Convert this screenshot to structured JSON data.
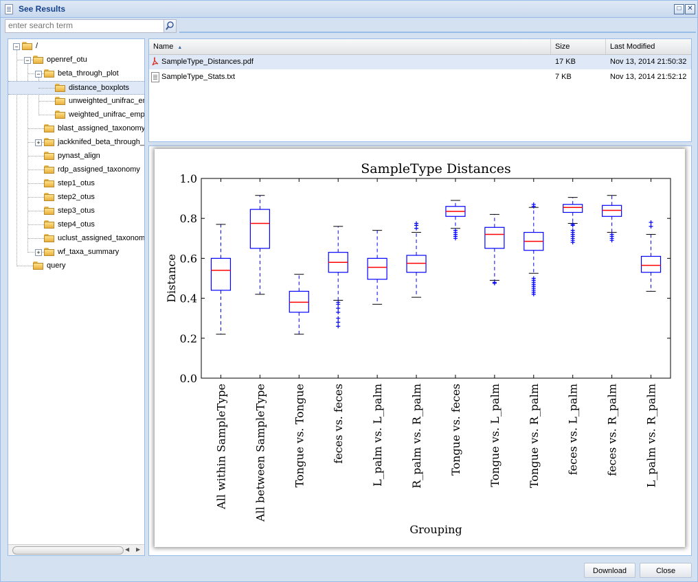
{
  "window": {
    "title": "See Results",
    "maximize_icon": "maximize-icon",
    "close_icon": "close-icon"
  },
  "search": {
    "placeholder": "enter search term",
    "value": ""
  },
  "tree": {
    "items": [
      {
        "label": "/",
        "level": 0,
        "expander": "minus"
      },
      {
        "label": "openref_otu",
        "level": 1,
        "expander": "minus"
      },
      {
        "label": "beta_through_plot",
        "level": 2,
        "expander": "minus"
      },
      {
        "label": "distance_boxplots",
        "level": 3,
        "expander": "none",
        "selected": true
      },
      {
        "label": "unweighted_unifrac_em",
        "level": 3,
        "expander": "none"
      },
      {
        "label": "weighted_unifrac_empe",
        "level": 3,
        "expander": "none"
      },
      {
        "label": "blast_assigned_taxonomy",
        "level": 2,
        "expander": "none"
      },
      {
        "label": "jackknifed_beta_through_p",
        "level": 2,
        "expander": "plus"
      },
      {
        "label": "pynast_align",
        "level": 2,
        "expander": "none"
      },
      {
        "label": "rdp_assigned_taxonomy",
        "level": 2,
        "expander": "none"
      },
      {
        "label": "step1_otus",
        "level": 2,
        "expander": "none"
      },
      {
        "label": "step2_otus",
        "level": 2,
        "expander": "none"
      },
      {
        "label": "step3_otus",
        "level": 2,
        "expander": "none"
      },
      {
        "label": "step4_otus",
        "level": 2,
        "expander": "none"
      },
      {
        "label": "uclust_assigned_taxonomy",
        "level": 2,
        "expander": "none"
      },
      {
        "label": "wf_taxa_summary",
        "level": 2,
        "expander": "plus"
      },
      {
        "label": "query",
        "level": 1,
        "expander": "none"
      }
    ]
  },
  "grid": {
    "columns": {
      "name": "Name",
      "size": "Size",
      "modified": "Last Modified"
    },
    "sort_icon": "sort-ascending-icon",
    "rows": [
      {
        "icon": "pdf-file-icon",
        "name": "SampleType_Distances.pdf",
        "size": "17 KB",
        "modified": "Nov 13, 2014 21:50:32",
        "selected": true
      },
      {
        "icon": "text-file-icon",
        "name": "SampleType_Stats.txt",
        "size": "7 KB",
        "modified": "Nov 13, 2014 21:52:12",
        "selected": false
      }
    ]
  },
  "chart_data": {
    "type": "boxplot",
    "title": "SampleType Distances",
    "xlabel": "Grouping",
    "ylabel": "Distance",
    "ylim": [
      0.0,
      1.0
    ],
    "yticks": [
      "0.0",
      "0.2",
      "0.4",
      "0.6",
      "0.8",
      "1.0"
    ],
    "grid": false,
    "colors": {
      "box": "#0000ff",
      "median": "#ff0000"
    },
    "categories": [
      "All within SampleType",
      "All between SampleType",
      "Tongue vs. Tongue",
      "feces vs. feces",
      "L_palm vs. L_palm",
      "R_palm vs. R_palm",
      "Tongue vs. feces",
      "Tongue vs. L_palm",
      "Tongue vs. R_palm",
      "feces vs. L_palm",
      "feces vs. R_palm",
      "L_palm vs. R_palm"
    ],
    "boxes": [
      {
        "whislo": 0.22,
        "q1": 0.44,
        "med": 0.54,
        "q3": 0.6,
        "whishi": 0.77,
        "fliers": []
      },
      {
        "whislo": 0.42,
        "q1": 0.65,
        "med": 0.775,
        "q3": 0.845,
        "whishi": 0.915,
        "fliers": []
      },
      {
        "whislo": 0.22,
        "q1": 0.33,
        "med": 0.38,
        "q3": 0.435,
        "whishi": 0.52,
        "fliers": []
      },
      {
        "whislo": 0.39,
        "q1": 0.53,
        "med": 0.58,
        "q3": 0.63,
        "whishi": 0.76,
        "fliers": [
          0.26,
          0.28,
          0.3,
          0.33,
          0.35,
          0.37,
          0.38
        ]
      },
      {
        "whislo": 0.37,
        "q1": 0.495,
        "med": 0.555,
        "q3": 0.6,
        "whishi": 0.74,
        "fliers": []
      },
      {
        "whislo": 0.405,
        "q1": 0.53,
        "med": 0.575,
        "q3": 0.615,
        "whishi": 0.73,
        "fliers": [
          0.75,
          0.765,
          0.775
        ]
      },
      {
        "whislo": 0.75,
        "q1": 0.81,
        "med": 0.835,
        "q3": 0.86,
        "whishi": 0.89,
        "fliers": [
          0.7,
          0.71,
          0.72,
          0.73,
          0.74
        ]
      },
      {
        "whislo": 0.49,
        "q1": 0.65,
        "med": 0.72,
        "q3": 0.755,
        "whishi": 0.82,
        "fliers": [
          0.475,
          0.48
        ]
      },
      {
        "whislo": 0.525,
        "q1": 0.64,
        "med": 0.685,
        "q3": 0.73,
        "whishi": 0.855,
        "fliers": [
          0.42,
          0.43,
          0.44,
          0.45,
          0.46,
          0.47,
          0.48,
          0.49,
          0.5,
          0.86,
          0.87
        ]
      },
      {
        "whislo": 0.775,
        "q1": 0.83,
        "med": 0.855,
        "q3": 0.87,
        "whishi": 0.905,
        "fliers": [
          0.68,
          0.69,
          0.7,
          0.71,
          0.72,
          0.73,
          0.74,
          0.765,
          0.77
        ]
      },
      {
        "whislo": 0.73,
        "q1": 0.81,
        "med": 0.84,
        "q3": 0.865,
        "whishi": 0.915,
        "fliers": [
          0.69,
          0.7,
          0.71,
          0.72
        ]
      },
      {
        "whislo": 0.435,
        "q1": 0.53,
        "med": 0.565,
        "q3": 0.61,
        "whishi": 0.72,
        "fliers": [
          0.76,
          0.78
        ]
      }
    ]
  },
  "buttons": {
    "download": "Download",
    "close": "Close"
  }
}
